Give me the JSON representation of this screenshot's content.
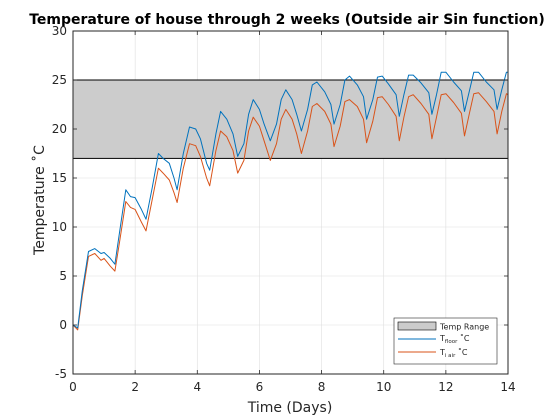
{
  "chart_data": {
    "type": "line",
    "title": "Temperature of house through 2 weeks (Outside air Sin function)",
    "xlabel": "Time (Days)",
    "ylabel": "Temperature ˚C",
    "xlim": [
      0,
      14
    ],
    "ylim": [
      -5,
      30
    ],
    "x_ticks": [
      "0",
      "2",
      "4",
      "6",
      "8",
      "10",
      "12",
      "14"
    ],
    "y_ticks": [
      "-5",
      "0",
      "5",
      "10",
      "15",
      "20",
      "25",
      "30"
    ],
    "grid": true,
    "legend_position": "bottom-right",
    "temp_range": {
      "name": "Temp Range",
      "y_low": 17,
      "y_high": 25,
      "color": "#cccccc"
    },
    "series": [
      {
        "name": "T_floor ˚C",
        "legend_main": "T",
        "legend_sub": "floor",
        "legend_suffix": " ˚C",
        "color": "#0072bd",
        "x": [
          0,
          0.15,
          0.3,
          0.5,
          0.7,
          0.9,
          1.0,
          1.2,
          1.35,
          1.5,
          1.7,
          1.85,
          2.0,
          2.2,
          2.35,
          2.55,
          2.75,
          2.9,
          3.1,
          3.25,
          3.35,
          3.55,
          3.75,
          3.95,
          4.1,
          4.3,
          4.4,
          4.6,
          4.75,
          4.95,
          5.15,
          5.3,
          5.5,
          5.65,
          5.8,
          6.0,
          6.15,
          6.35,
          6.55,
          6.7,
          6.85,
          7.05,
          7.2,
          7.35,
          7.55,
          7.7,
          7.85,
          8.1,
          8.3,
          8.4,
          8.6,
          8.75,
          8.9,
          9.15,
          9.35,
          9.45,
          9.65,
          9.8,
          9.95,
          10.15,
          10.4,
          10.5,
          10.65,
          10.8,
          10.95,
          11.2,
          11.45,
          11.55,
          11.7,
          11.85,
          12.0,
          12.25,
          12.5,
          12.6,
          12.75,
          12.9,
          13.05,
          13.3,
          13.55,
          13.65,
          13.8,
          13.95,
          14.0
        ],
        "y": [
          0,
          -0.3,
          3.5,
          7.5,
          7.8,
          7.3,
          7.4,
          6.8,
          6.2,
          9.5,
          13.8,
          13.1,
          13.0,
          11.8,
          10.8,
          14.0,
          17.5,
          17.0,
          16.5,
          15.0,
          13.8,
          17.5,
          20.2,
          20.0,
          19.0,
          16.5,
          15.8,
          19.5,
          21.8,
          21.0,
          19.5,
          17.2,
          18.5,
          21.5,
          23.0,
          22.0,
          20.5,
          18.8,
          20.5,
          23.0,
          24.0,
          23.0,
          21.5,
          19.8,
          22.0,
          24.5,
          24.8,
          23.8,
          22.5,
          20.5,
          22.5,
          25.0,
          25.4,
          24.5,
          23.3,
          21.0,
          23.0,
          25.3,
          25.4,
          24.6,
          23.5,
          21.3,
          23.5,
          25.5,
          25.5,
          24.7,
          23.7,
          21.5,
          23.5,
          25.8,
          25.8,
          24.8,
          23.9,
          21.8,
          23.8,
          25.8,
          25.8,
          24.8,
          24.0,
          22.0,
          24.0,
          25.8,
          25.8
        ]
      },
      {
        "name": "T_i air ˚C",
        "legend_main": "T",
        "legend_sub": "i air",
        "legend_suffix": " ˚C",
        "color": "#d95319",
        "x": [
          0,
          0.15,
          0.3,
          0.5,
          0.7,
          0.9,
          1.0,
          1.2,
          1.35,
          1.5,
          1.7,
          1.85,
          2.0,
          2.2,
          2.35,
          2.55,
          2.75,
          2.9,
          3.1,
          3.25,
          3.35,
          3.55,
          3.75,
          3.95,
          4.1,
          4.3,
          4.4,
          4.6,
          4.75,
          4.95,
          5.15,
          5.3,
          5.5,
          5.65,
          5.8,
          6.0,
          6.15,
          6.35,
          6.55,
          6.7,
          6.85,
          7.05,
          7.2,
          7.35,
          7.55,
          7.7,
          7.85,
          8.1,
          8.3,
          8.4,
          8.6,
          8.75,
          8.9,
          9.15,
          9.35,
          9.45,
          9.65,
          9.8,
          9.95,
          10.15,
          10.4,
          10.5,
          10.65,
          10.8,
          10.95,
          11.2,
          11.45,
          11.55,
          11.7,
          11.85,
          12.0,
          12.25,
          12.5,
          12.6,
          12.75,
          12.9,
          13.05,
          13.3,
          13.55,
          13.65,
          13.8,
          13.95,
          14.0
        ],
        "y": [
          0,
          -0.5,
          3.0,
          7.0,
          7.3,
          6.6,
          6.8,
          6.0,
          5.5,
          8.5,
          12.6,
          12.0,
          11.8,
          10.5,
          9.6,
          12.8,
          16.0,
          15.5,
          14.8,
          13.5,
          12.5,
          16.0,
          18.5,
          18.3,
          17.2,
          15.0,
          14.2,
          17.8,
          19.8,
          19.2,
          17.8,
          15.5,
          16.8,
          19.8,
          21.2,
          20.3,
          18.8,
          16.8,
          18.5,
          21.0,
          22.0,
          21.0,
          19.5,
          17.5,
          19.8,
          22.3,
          22.6,
          21.8,
          20.5,
          18.2,
          20.3,
          22.8,
          23.0,
          22.3,
          21.0,
          18.6,
          20.8,
          23.2,
          23.3,
          22.5,
          21.3,
          18.8,
          21.2,
          23.3,
          23.5,
          22.6,
          21.5,
          19.0,
          21.2,
          23.5,
          23.6,
          22.7,
          21.6,
          19.3,
          21.5,
          23.6,
          23.7,
          22.8,
          21.8,
          19.5,
          21.8,
          23.6,
          23.5
        ]
      }
    ]
  }
}
